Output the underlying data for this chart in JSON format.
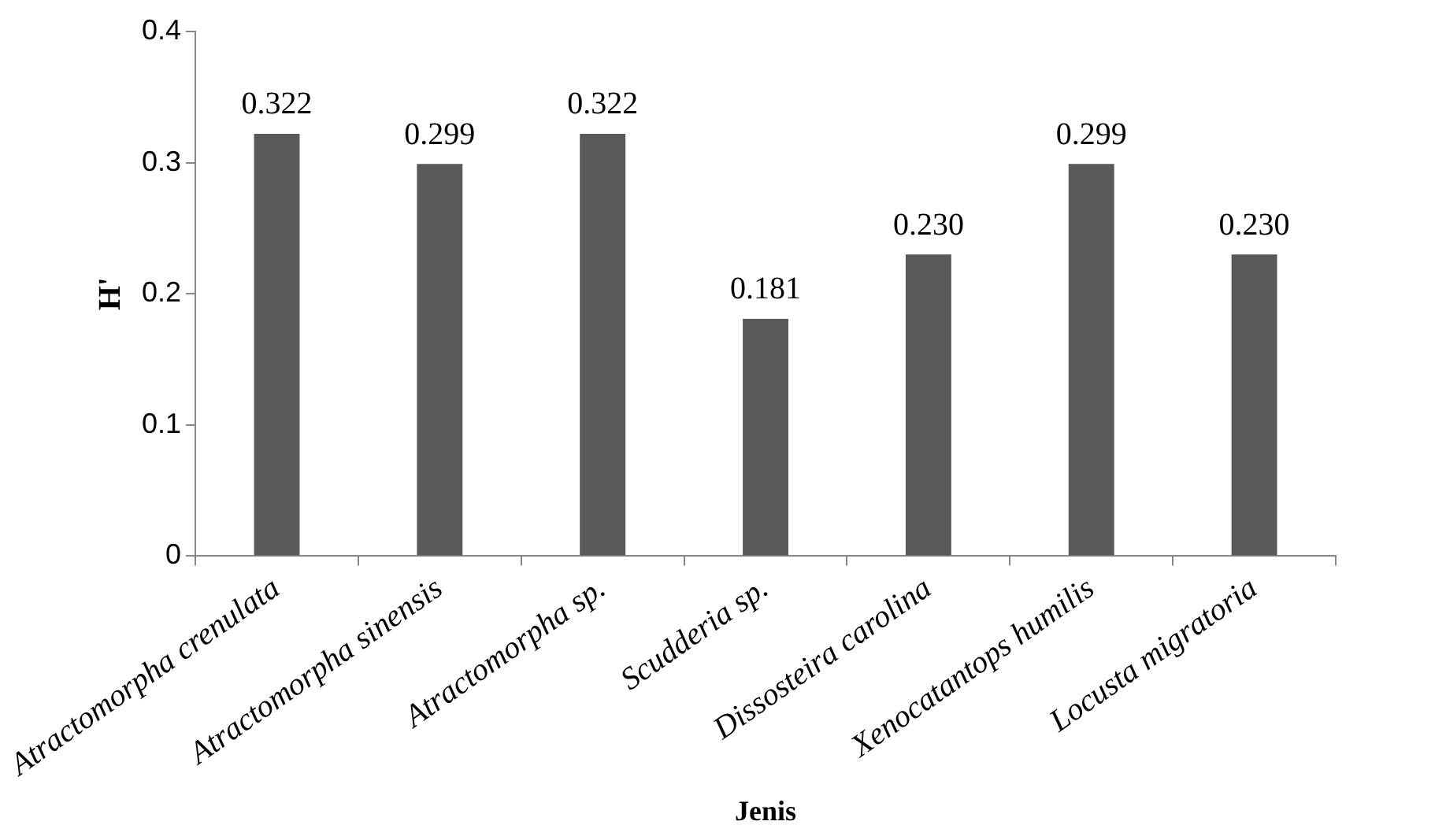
{
  "chart_data": {
    "type": "bar",
    "xlabel": "Jenis",
    "ylabel": "H'",
    "categories": [
      "Atractomorpha crenulata",
      "Atractomorpha sinensis",
      "Atractomorpha sp.",
      "Scudderia sp.",
      "Dissosteira carolina",
      "Xenocatantops humilis",
      "Locusta migratoria"
    ],
    "values": [
      0.322,
      0.299,
      0.322,
      0.181,
      0.23,
      0.299,
      0.23
    ],
    "value_labels": [
      "0.322",
      "0.299",
      "0.322",
      "0.181",
      "0.230",
      "0.299",
      "0.230"
    ],
    "color": "#595959",
    "ylim": [
      0,
      0.4
    ],
    "yticks": [
      0,
      0.1,
      0.2,
      0.3,
      0.4
    ],
    "grid": false,
    "legend": false
  }
}
